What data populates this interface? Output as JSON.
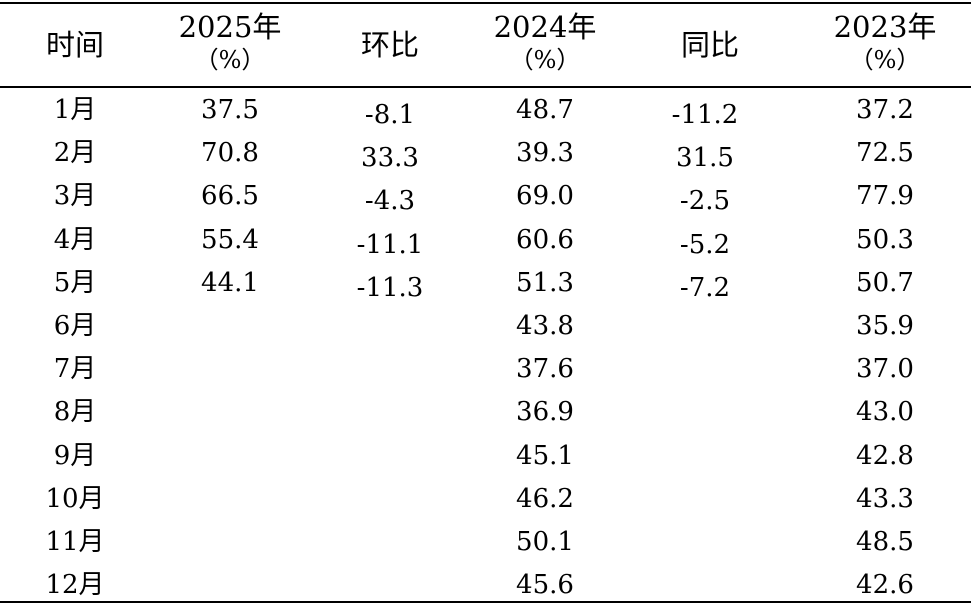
{
  "headers": [
    {
      "line1": "时间",
      "line2": ""
    },
    {
      "line1": "2025年",
      "line2": "（%）"
    },
    {
      "line1": "环比",
      "line2": ""
    },
    {
      "line1": "2024年",
      "line2": "（%）"
    },
    {
      "line1": "同比",
      "line2": ""
    },
    {
      "line1": "2023年",
      "line2": "（%）"
    }
  ],
  "rows": [
    {
      "month": "1月",
      "y2025": "37.5",
      "mom": "-8.1",
      "y2024": "48.7",
      "yoy": "-11.2",
      "y2023": "37.2"
    },
    {
      "month": "2月",
      "y2025": "70.8",
      "mom": "33.3",
      "y2024": "39.3",
      "yoy": "31.5",
      "y2023": "72.5"
    },
    {
      "month": "3月",
      "y2025": "66.5",
      "mom": "-4.3",
      "y2024": "69.0",
      "yoy": "-2.5",
      "y2023": "77.9"
    },
    {
      "month": "4月",
      "y2025": "55.4",
      "mom": "-11.1",
      "y2024": "60.6",
      "yoy": "-5.2",
      "y2023": "50.3"
    },
    {
      "month": "5月",
      "y2025": "44.1",
      "mom": "-11.3",
      "y2024": "51.3",
      "yoy": "-7.2",
      "y2023": "50.7"
    },
    {
      "month": "6月",
      "y2025": "",
      "mom": "",
      "y2024": "43.8",
      "yoy": "",
      "y2023": "35.9"
    },
    {
      "month": "7月",
      "y2025": "",
      "mom": "",
      "y2024": "37.6",
      "yoy": "",
      "y2023": "37.0"
    },
    {
      "month": "8月",
      "y2025": "",
      "mom": "",
      "y2024": "36.9",
      "yoy": "",
      "y2023": "43.0"
    },
    {
      "month": "9月",
      "y2025": "",
      "mom": "",
      "y2024": "45.1",
      "yoy": "",
      "y2023": "42.8"
    },
    {
      "month": "10月",
      "y2025": "",
      "mom": "",
      "y2024": "46.2",
      "yoy": "",
      "y2023": "43.3"
    },
    {
      "month": "11月",
      "y2025": "",
      "mom": "",
      "y2024": "50.1",
      "yoy": "",
      "y2023": "48.5"
    },
    {
      "month": "12月",
      "y2025": "",
      "mom": "",
      "y2024": "45.6",
      "yoy": "",
      "y2023": "42.6"
    }
  ]
}
